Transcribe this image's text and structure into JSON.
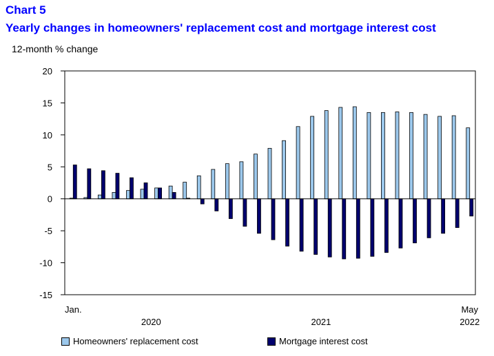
{
  "header": {
    "chart_number": "Chart 5",
    "title": "Yearly changes in homeowners' replacement cost and mortgage interest cost"
  },
  "colors": {
    "title": "#0000ff",
    "replacement": "#9cc8ec",
    "mortgage": "#00006e"
  },
  "chart_data": {
    "type": "bar",
    "title": "Yearly changes in homeowners' replacement cost and mortgage interest cost",
    "ylabel": "12-month % change",
    "ylim": [
      -15,
      20
    ],
    "yticks": [
      -15,
      -10,
      -5,
      0,
      5,
      10,
      15,
      20
    ],
    "grid": false,
    "legend_position": "bottom",
    "month_labels": {
      "first": "Jan.",
      "last": "May"
    },
    "year_labels": [
      "2020",
      "2021",
      "2022"
    ],
    "categories": [
      "2020-01",
      "2020-02",
      "2020-03",
      "2020-04",
      "2020-05",
      "2020-06",
      "2020-07",
      "2020-08",
      "2020-09",
      "2020-10",
      "2020-11",
      "2020-12",
      "2021-01",
      "2021-02",
      "2021-03",
      "2021-04",
      "2021-05",
      "2021-06",
      "2021-07",
      "2021-08",
      "2021-09",
      "2021-10",
      "2021-11",
      "2021-12",
      "2022-01",
      "2022-02",
      "2022-03",
      "2022-04",
      "2022-05"
    ],
    "series": [
      {
        "name": "Homeowners' replacement cost",
        "values": [
          0.1,
          0.2,
          0.6,
          1.0,
          1.3,
          1.5,
          1.7,
          2.0,
          2.6,
          3.6,
          4.6,
          5.5,
          5.8,
          7.0,
          7.9,
          9.1,
          11.3,
          12.9,
          13.8,
          14.3,
          14.4,
          13.5,
          13.5,
          13.6,
          13.5,
          13.2,
          12.9,
          13.0,
          11.1
        ]
      },
      {
        "name": "Mortgage interest cost",
        "values": [
          5.3,
          4.7,
          4.4,
          4.0,
          3.3,
          2.5,
          1.7,
          1.0,
          0.1,
          -0.8,
          -1.9,
          -3.1,
          -4.3,
          -5.4,
          -6.4,
          -7.4,
          -8.2,
          -8.7,
          -9.1,
          -9.4,
          -9.3,
          -9.0,
          -8.4,
          -7.7,
          -6.9,
          -6.1,
          -5.4,
          -4.5,
          -2.7
        ]
      }
    ]
  }
}
